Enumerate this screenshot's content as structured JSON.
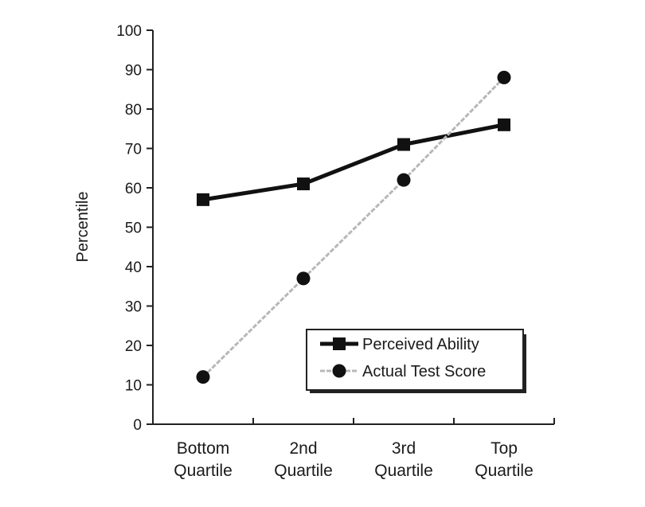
{
  "chart_data": {
    "type": "line",
    "title": "",
    "xlabel": "",
    "ylabel": "Percentile",
    "ylim": [
      0,
      100
    ],
    "yticks": [
      0,
      10,
      20,
      30,
      40,
      50,
      60,
      70,
      80,
      90,
      100
    ],
    "categories": [
      [
        "Bottom",
        "Quartile"
      ],
      [
        "2nd",
        "Quartile"
      ],
      [
        "3rd",
        "Quartile"
      ],
      [
        "Top",
        "Quartile"
      ]
    ],
    "series": [
      {
        "name": "Perceived Ability",
        "values": [
          57,
          61,
          71,
          76
        ],
        "marker": "square",
        "color": "#111111"
      },
      {
        "name": "Actual Test Score",
        "values": [
          12,
          37,
          62,
          88
        ],
        "marker": "circle",
        "color": "#b8b8b8"
      }
    ],
    "grid": false,
    "legend_position": "bottom-right"
  }
}
